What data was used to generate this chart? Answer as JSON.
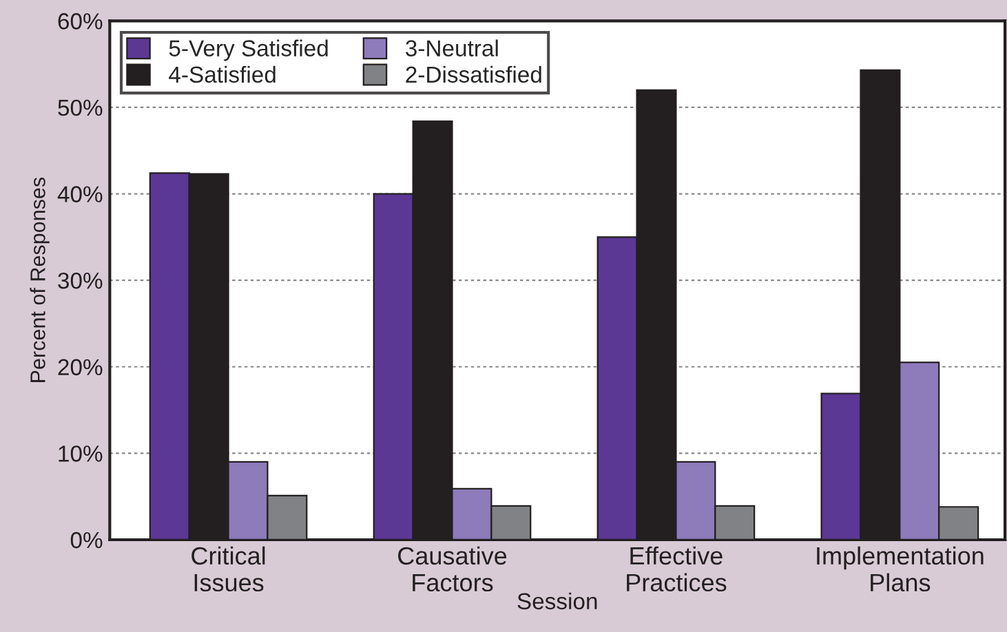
{
  "chart_data": {
    "type": "bar",
    "xlabel": "Session",
    "ylabel": "Percent of Responses",
    "categories": [
      "Critical\nIssues",
      "Causative\nFactors",
      "Effective\nPractices",
      "Implementation\nPlans"
    ],
    "series": [
      {
        "name": "5-Very Satisfied",
        "color": "#5b3894",
        "values": [
          42.4,
          40,
          35,
          16.9
        ]
      },
      {
        "name": "4-Satisfied",
        "color": "#231f20",
        "values": [
          42.3,
          48.4,
          52,
          54.3
        ]
      },
      {
        "name": "3-Neutral",
        "color": "#8e7bba",
        "values": [
          9,
          5.9,
          9,
          20.5
        ]
      },
      {
        "name": "2-Dissatisfied",
        "color": "#808285",
        "values": [
          5.1,
          3.9,
          3.9,
          3.8
        ]
      }
    ],
    "ylim": [
      0,
      60
    ],
    "yticks": [
      {
        "value": 0,
        "label": "0%"
      },
      {
        "value": 10,
        "label": "10%"
      },
      {
        "value": 20,
        "label": "20%"
      },
      {
        "value": 30,
        "label": "30%"
      },
      {
        "value": 40,
        "label": "40%"
      },
      {
        "value": 50,
        "label": "50%"
      },
      {
        "value": 60,
        "label": "60%"
      }
    ],
    "grid": "y",
    "legend": "top left"
  }
}
